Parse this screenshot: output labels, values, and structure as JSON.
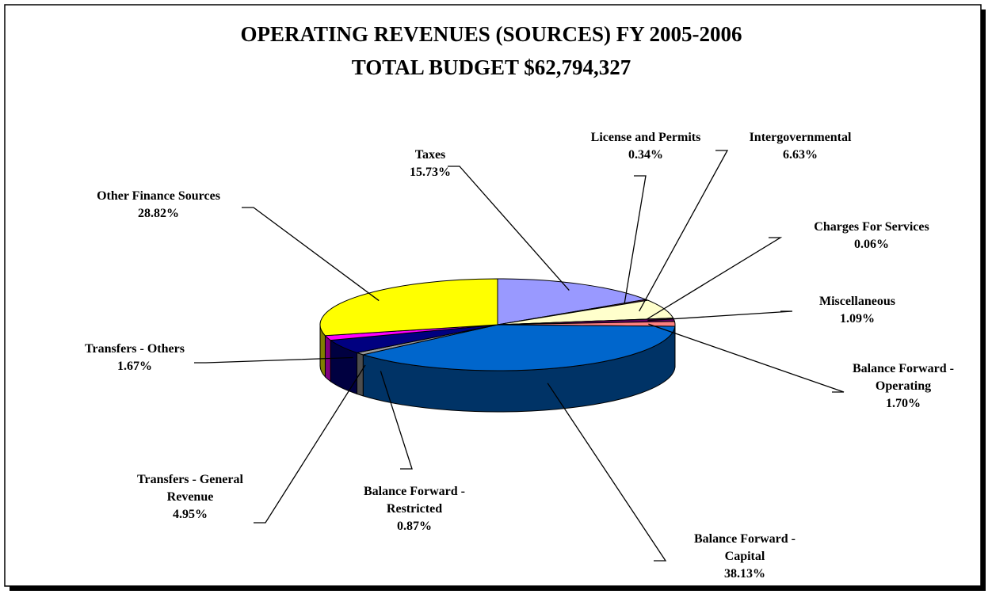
{
  "chart_data": {
    "type": "pie3d",
    "title": "OPERATING REVENUES (SOURCES) FY 2005-2006",
    "subtitle": "TOTAL BUDGET $62,794,327",
    "categories": [
      "Taxes",
      "License and Permits",
      "Intergovernmental",
      "Charges For Services",
      "Miscellaneous",
      "Balance Forward - Operating",
      "Balance Forward - Capital",
      "Balance Forward - Restricted",
      "Transfers - General Revenue",
      "Transfers - Others",
      "Other Finance Sources"
    ],
    "values": [
      15.73,
      0.34,
      6.63,
      0.06,
      1.09,
      1.7,
      38.13,
      0.87,
      4.95,
      1.67,
      28.82
    ],
    "value_labels": [
      "15.73%",
      "0.34%",
      "6.63%",
      "0.06%",
      "1.09%",
      "1.70%",
      "38.13%",
      "0.87%",
      "4.95%",
      "1.67%",
      "28.82%"
    ],
    "colors": [
      "#9999ff",
      "#993366",
      "#ffffcc",
      "#ccffff",
      "#660066",
      "#ff8080",
      "#0066cc",
      "#999999",
      "#000080",
      "#ff00ff",
      "#ffff00"
    ]
  }
}
